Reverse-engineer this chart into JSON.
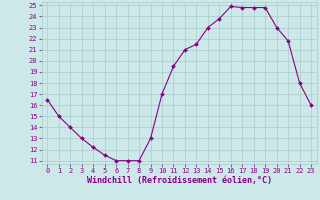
{
  "x": [
    0,
    1,
    2,
    3,
    4,
    5,
    6,
    7,
    8,
    9,
    10,
    11,
    12,
    13,
    14,
    15,
    16,
    17,
    18,
    19,
    20,
    21,
    22,
    23
  ],
  "y": [
    16.5,
    15.0,
    14.0,
    13.0,
    12.2,
    11.5,
    11.0,
    11.0,
    11.0,
    13.0,
    17.0,
    19.5,
    21.0,
    21.5,
    23.0,
    23.8,
    24.9,
    24.8,
    24.8,
    24.8,
    23.0,
    21.8,
    18.0,
    16.0
  ],
  "xlim_min": -0.5,
  "xlim_max": 23.5,
  "ylim_min": 10.7,
  "ylim_max": 25.3,
  "yticks": [
    11,
    12,
    13,
    14,
    15,
    16,
    17,
    18,
    19,
    20,
    21,
    22,
    23,
    24,
    25
  ],
  "xticks": [
    0,
    1,
    2,
    3,
    4,
    5,
    6,
    7,
    8,
    9,
    10,
    11,
    12,
    13,
    14,
    15,
    16,
    17,
    18,
    19,
    20,
    21,
    22,
    23
  ],
  "xlabel": "Windchill (Refroidissement éolien,°C)",
  "line_color": "#880088",
  "marker_color": "#880088",
  "bg_color": "#cce8e8",
  "grid_color": "#aacccc",
  "tick_label_color": "#880088",
  "axis_label_color": "#880088",
  "font_size_tick": 5.0,
  "font_size_label": 6.0,
  "linewidth": 0.8,
  "markersize": 2.0
}
